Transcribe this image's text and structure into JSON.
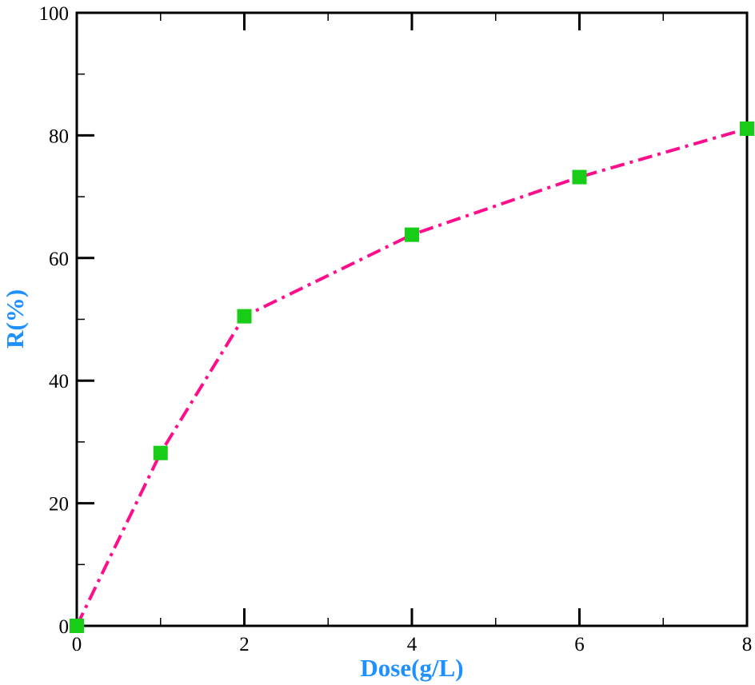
{
  "chart_data": {
    "type": "line",
    "title": "",
    "xlabel": "Dose(g/L)",
    "ylabel": "R(%)",
    "xlim": [
      0,
      8
    ],
    "ylim": [
      0,
      100
    ],
    "x_ticks": [
      "0",
      "2",
      "4",
      "6",
      "8"
    ],
    "y_ticks": [
      "0",
      "20",
      "40",
      "60",
      "80",
      "100"
    ],
    "x_minor_step": 1,
    "y_minor_step": 10,
    "grid": false,
    "legend": "none",
    "series": [
      {
        "x": [
          0,
          1,
          2,
          4,
          6,
          8
        ],
        "y": [
          0,
          28.2,
          50.5,
          63.8,
          73.2,
          81.1
        ],
        "marker": "square",
        "line_style": "dash-dot"
      }
    ],
    "colors": {
      "line": "#ff0e8c",
      "marker": "#18cc18",
      "axis_title": "#1e90ff",
      "axis": "#000000"
    }
  }
}
